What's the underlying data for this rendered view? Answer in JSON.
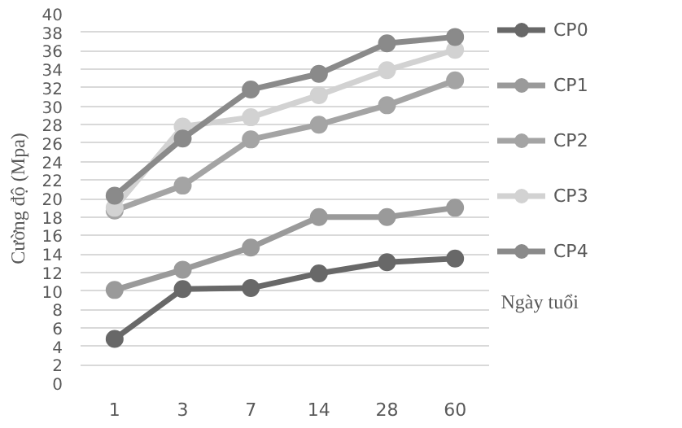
{
  "chart_data": {
    "type": "line",
    "ylabel": "Cường độ (Mpa)",
    "xlabel": "Ngày tuổi",
    "categories": [
      "1",
      "3",
      "7",
      "14",
      "28",
      "60"
    ],
    "series": [
      {
        "name": "CP0",
        "color": "#686868",
        "values": [
          4.8,
          10.2,
          10.3,
          11.9,
          13.1,
          13.5
        ]
      },
      {
        "name": "CP1",
        "color": "#9a9a9a",
        "values": [
          10.1,
          12.3,
          14.7,
          18,
          18,
          19
        ]
      },
      {
        "name": "CP2",
        "color": "#a4a4a4",
        "values": [
          18.7,
          21.4,
          26.4,
          28,
          30.1,
          32.8
        ]
      },
      {
        "name": "CP3",
        "color": "#d2d2d2",
        "values": [
          19,
          27.8,
          28.8,
          31.2,
          33.9,
          36.1
        ]
      },
      {
        "name": "CP4",
        "color": "#8a8a8a",
        "values": [
          20.3,
          26.5,
          31.8,
          33.5,
          36.8,
          37.5
        ]
      }
    ],
    "ylim": [
      0,
      40
    ],
    "yticks": [
      0,
      2,
      4,
      6,
      8,
      10,
      12,
      14,
      16,
      18,
      20,
      22,
      24,
      26,
      28,
      30,
      32,
      34,
      36,
      38,
      40
    ],
    "grid": "y",
    "legend": "right",
    "marker": "circle",
    "line_style": "solid"
  }
}
